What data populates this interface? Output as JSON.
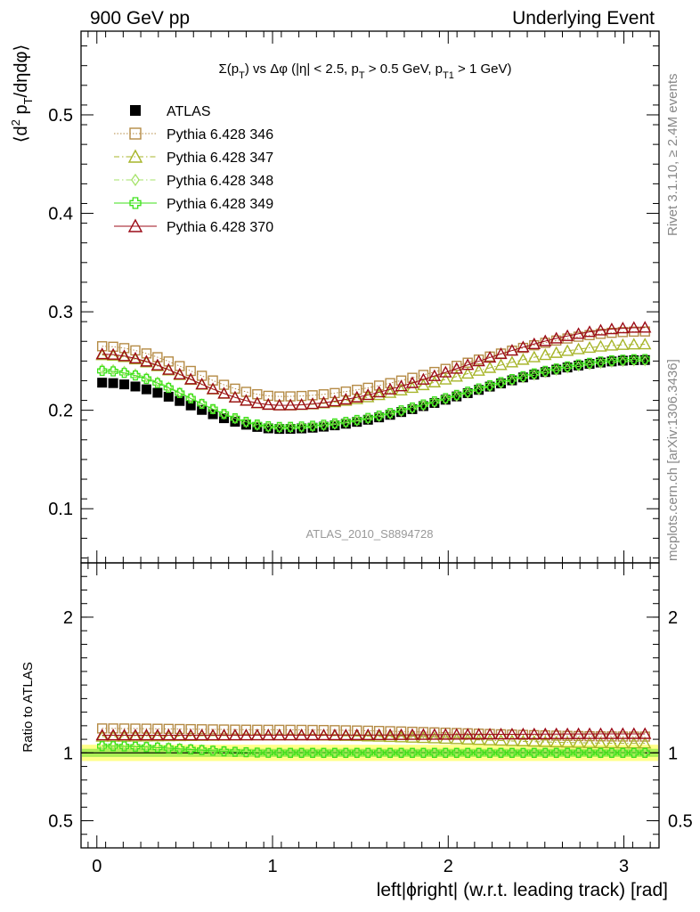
{
  "header": {
    "left": "900 GeV pp",
    "right": "Underlying Event",
    "side_rivet": "Rivet 3.1.10, ≥ 2.4M events",
    "side_mcplots": "mcplots.cern.ch [arXiv:1306.3436]",
    "analysis_id": "ATLAS_2010_S8894728"
  },
  "colors": {
    "atlas": "#000000",
    "p346": "#b58b45",
    "p347": "#a7b52a",
    "p348": "#a6e36a",
    "p349": "#3ce21a",
    "p370": "#9c0c18",
    "band_outer": "#ffff88",
    "band_inner": "#aaee55"
  },
  "chart_data": [
    {
      "type": "scatter",
      "panel": "main",
      "title": "Σ(p_T) vs Δφ (|η| < 2.5, p_T > 0.5 GeV, p_T1 > 1 GeV)",
      "ylabel": "⟨d² p_T/dηdφ⟩",
      "xlim": [
        -0.09,
        3.2
      ],
      "ylim": [
        0.045,
        0.585
      ],
      "yticks": [
        0.1,
        0.2,
        0.3,
        0.4,
        0.5
      ],
      "ytick_labels": [
        "0.1",
        "0.2",
        "0.3",
        "0.4",
        "0.5"
      ],
      "legend_position": "top-left",
      "series": [
        {
          "key": "atlas",
          "name": "ATLAS",
          "marker": "filled-square",
          "line": "none",
          "points": [
            [
              0.03,
              0.228
            ],
            [
              1.05,
              0.181
            ],
            [
              3.12,
              0.251
            ]
          ]
        },
        {
          "key": "p346",
          "name": "Pythia 6.428 346",
          "marker": "open-square",
          "line": "dotted",
          "points": [
            [
              0.03,
              0.265
            ],
            [
              1.05,
              0.214
            ],
            [
              3.12,
              0.28
            ]
          ]
        },
        {
          "key": "p347",
          "name": "Pythia 6.428 347",
          "marker": "open-triangle",
          "line": "dashdot",
          "points": [
            [
              0.03,
              0.256
            ],
            [
              1.05,
              0.205
            ],
            [
              3.12,
              0.267
            ]
          ]
        },
        {
          "key": "p348",
          "name": "Pythia 6.428 348",
          "marker": "open-diamond",
          "line": "dashdot",
          "points": [
            [
              0.03,
              0.242
            ],
            [
              1.05,
              0.182
            ],
            [
              3.12,
              0.25
            ]
          ]
        },
        {
          "key": "p349",
          "name": "Pythia 6.428 349",
          "marker": "open-cross",
          "line": "solid",
          "points": [
            [
              0.03,
              0.24
            ],
            [
              1.05,
              0.183
            ],
            [
              3.12,
              0.252
            ]
          ]
        },
        {
          "key": "p370",
          "name": "Pythia 6.428 370",
          "marker": "open-triangle",
          "line": "solid",
          "points": [
            [
              0.03,
              0.257
            ],
            [
              1.05,
              0.205
            ],
            [
              3.12,
              0.284
            ]
          ]
        }
      ]
    },
    {
      "type": "scatter",
      "panel": "ratio",
      "xlabel": "left|ϕright| (w.r.t. leading track) [rad]",
      "ylabel": "Ratio to ATLAS",
      "xlim": [
        -0.09,
        3.2
      ],
      "xticks": [
        0,
        1,
        2,
        3
      ],
      "xtick_labels": [
        "0",
        "1",
        "2",
        "3"
      ],
      "ylim": [
        0.3,
        2.4
      ],
      "yticks": [
        0.5,
        1,
        2
      ],
      "ytick_labels": [
        "0.5",
        "1",
        "2"
      ],
      "reference_line": 1.0,
      "band_outer_halfwidth": 0.06,
      "band_inner_halfwidth": 0.03,
      "series": [
        {
          "key": "p346",
          "points": [
            [
              0.03,
              1.18
            ],
            [
              1.05,
              1.17
            ],
            [
              3.12,
              1.12
            ]
          ]
        },
        {
          "key": "p347",
          "points": [
            [
              0.03,
              1.12
            ],
            [
              1.05,
              1.13
            ],
            [
              3.12,
              1.07
            ]
          ]
        },
        {
          "key": "p348",
          "points": [
            [
              0.03,
              1.06
            ],
            [
              1.05,
              1.0
            ],
            [
              3.12,
              1.0
            ]
          ]
        },
        {
          "key": "p349",
          "points": [
            [
              0.03,
              1.05
            ],
            [
              1.05,
              1.0
            ],
            [
              3.12,
              1.0
            ]
          ]
        },
        {
          "key": "p370",
          "points": [
            [
              0.03,
              1.13
            ],
            [
              1.05,
              1.13
            ],
            [
              3.12,
              1.14
            ]
          ]
        }
      ]
    }
  ]
}
